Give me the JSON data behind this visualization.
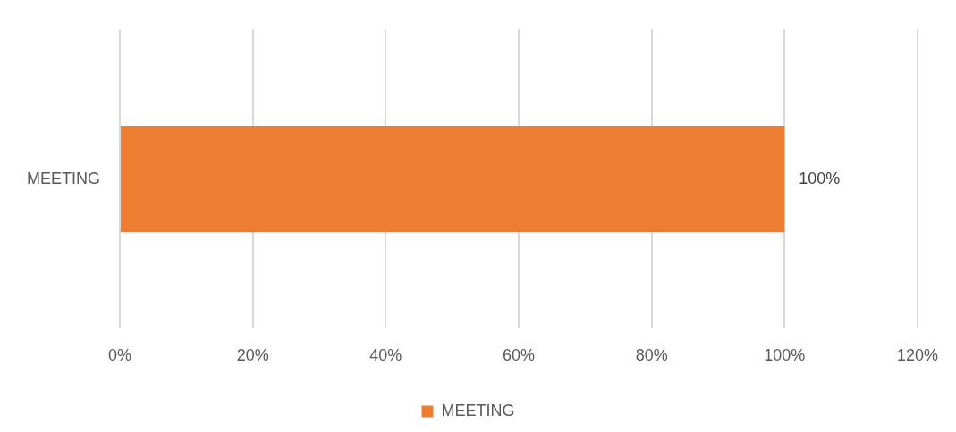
{
  "chart_data": {
    "type": "bar",
    "orientation": "horizontal",
    "categories": [
      "MEETING"
    ],
    "series": [
      {
        "name": "MEETING",
        "color": "#ed7d31",
        "values": [
          100
        ],
        "value_labels": [
          "100%"
        ]
      }
    ],
    "xlim": [
      0,
      120
    ],
    "xticks": [
      {
        "value": 0,
        "label": "0%"
      },
      {
        "value": 20,
        "label": "20%"
      },
      {
        "value": 40,
        "label": "40%"
      },
      {
        "value": 60,
        "label": "60%"
      },
      {
        "value": 80,
        "label": "80%"
      },
      {
        "value": 100,
        "label": "100%"
      },
      {
        "value": 120,
        "label": "120%"
      }
    ],
    "grid": "x",
    "legend": "bottom"
  }
}
